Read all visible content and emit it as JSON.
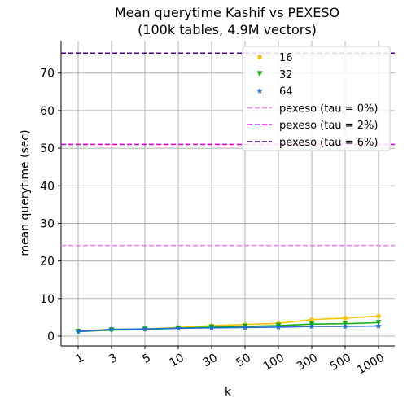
{
  "chart_data": {
    "type": "line",
    "title": "Mean querytime Kashif vs PEXESO",
    "subtitle": "(100k tables, 4.9M vectors)",
    "xlabel": "k",
    "ylabel": "mean querytime (sec)",
    "categories": [
      "1",
      "3",
      "5",
      "10",
      "30",
      "50",
      "100",
      "300",
      "500",
      "1000"
    ],
    "ylim": [
      -2.6,
      78.6
    ],
    "yticks": [
      0,
      10,
      20,
      30,
      40,
      50,
      60,
      70
    ],
    "grid": true,
    "legend_position": "top-right",
    "series": [
      {
        "name": "16",
        "color": "#f2c40f",
        "marker": "circle",
        "values": [
          1.4,
          1.8,
          1.9,
          2.3,
          2.8,
          3.1,
          3.4,
          4.4,
          4.8,
          5.3
        ]
      },
      {
        "name": "32",
        "color": "#11aa11",
        "marker": "triangle-down",
        "values": [
          1.2,
          1.6,
          1.8,
          2.1,
          2.4,
          2.6,
          2.8,
          3.2,
          3.3,
          3.6
        ]
      },
      {
        "name": "64",
        "color": "#1f6fd1",
        "marker": "star",
        "values": [
          1.2,
          1.8,
          1.9,
          2.1,
          2.2,
          2.3,
          2.4,
          2.6,
          2.6,
          2.7
        ]
      }
    ],
    "reference_lines": [
      {
        "name": "pexeso (tau = 0%)",
        "value": 24.1,
        "color": "#ee82ee"
      },
      {
        "name": "pexeso (tau = 2%)",
        "value": 51.0,
        "color": "#dd00dd"
      },
      {
        "name": "pexeso (tau = 6%)",
        "value": 75.3,
        "color": "#4b0082"
      }
    ]
  }
}
